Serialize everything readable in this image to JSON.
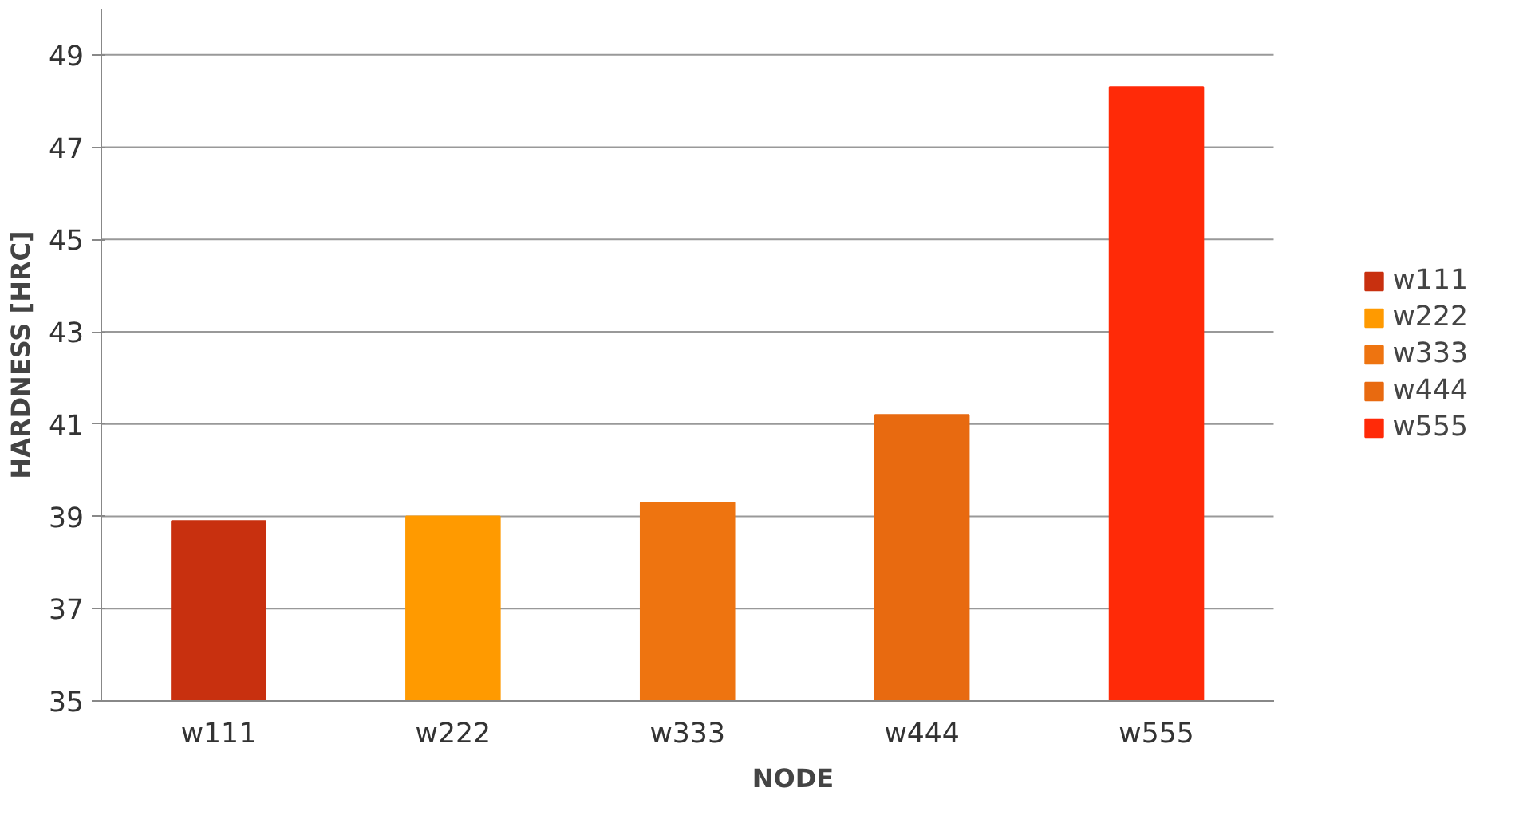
{
  "chart_data": {
    "type": "bar",
    "xlabel": "NODE",
    "ylabel": "HARDNESS [HRC]",
    "categories": [
      "w111",
      "w222",
      "w333",
      "w444",
      "w555"
    ],
    "series": [
      {
        "name": "w111",
        "color": "#c8300f",
        "values": [
          38.9,
          null,
          null,
          null,
          null
        ]
      },
      {
        "name": "w222",
        "color": "#ff9a00",
        "values": [
          null,
          39.0,
          null,
          null,
          null
        ]
      },
      {
        "name": "w333",
        "color": "#ee7410",
        "values": [
          null,
          null,
          39.3,
          null,
          null
        ]
      },
      {
        "name": "w444",
        "color": "#e86a10",
        "values": [
          null,
          null,
          null,
          41.2,
          null
        ]
      },
      {
        "name": "w555",
        "color": "#ff2a08",
        "values": [
          null,
          null,
          null,
          null,
          48.3
        ]
      }
    ],
    "ylim": [
      35,
      50
    ],
    "yticks": [
      35,
      37,
      39,
      41,
      43,
      45,
      47,
      49
    ],
    "grid": "y",
    "legend": "right"
  }
}
